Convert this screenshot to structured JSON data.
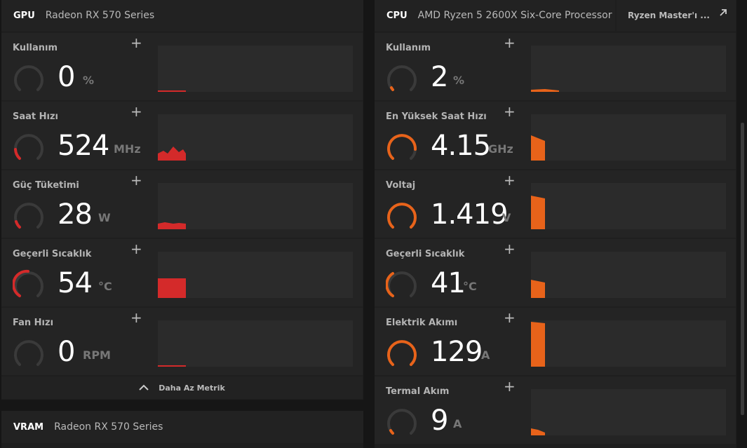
{
  "gpu": {
    "label": "GPU",
    "name": "Radeon RX 570 Series",
    "metrics": [
      {
        "title": "Kullanım",
        "value": "0",
        "unit": "%"
      },
      {
        "title": "Saat Hızı",
        "value": "524",
        "unit": "MHz"
      },
      {
        "title": "Güç Tüketimi",
        "value": "28",
        "unit": "W"
      },
      {
        "title": "Geçerli Sıcaklık",
        "value": "54",
        "unit": "°C"
      },
      {
        "title": "Fan Hızı",
        "value": "0",
        "unit": "RPM"
      }
    ],
    "collapse_label": "Daha Az Metrik"
  },
  "vram": {
    "label": "VRAM",
    "name": "Radeon RX 570 Series"
  },
  "cpu": {
    "label": "CPU",
    "name": "AMD Ryzen 5 2600X Six-Core Processor",
    "ryzen_master_label": "Ryzen Master'ı ...",
    "metrics": [
      {
        "title": "Kullanım",
        "value": "2",
        "unit": "%"
      },
      {
        "title": "En Yüksek Saat Hızı",
        "value": "4.15",
        "unit": "GHz"
      },
      {
        "title": "Voltaj",
        "value": "1.419",
        "unit": "V"
      },
      {
        "title": "Geçerli Sıcaklık",
        "value": "41",
        "unit": "°C"
      },
      {
        "title": "Elektrik Akımı",
        "value": "129",
        "unit": "A"
      },
      {
        "title": "Termal Akım",
        "value": "9",
        "unit": "A"
      }
    ]
  },
  "add_symbol": "+",
  "colors": {
    "gpu_accent": "#d42a2a",
    "cpu_accent": "#e8631a",
    "gauge_track": "#3a3a3a"
  },
  "icons": {
    "add": "plus-icon",
    "collapse": "chevron-up-icon",
    "external": "external-link-icon"
  }
}
